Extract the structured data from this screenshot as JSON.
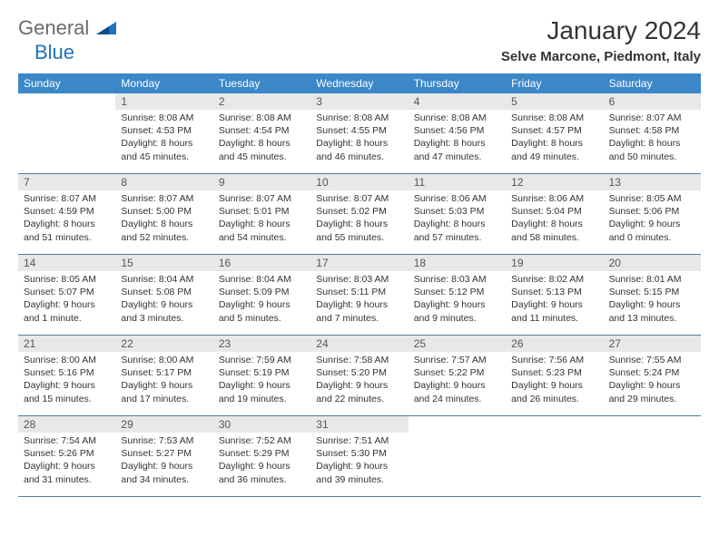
{
  "logo": {
    "text1": "General",
    "text2": "Blue"
  },
  "title": "January 2024",
  "location": "Selve Marcone, Piedmont, Italy",
  "colors": {
    "header_bg": "#3b87c8",
    "header_text": "#ffffff",
    "daynum_bg": "#e8e8e8",
    "daynum_text": "#555555",
    "border": "#5a7a94",
    "logo_gray": "#6b6b6b",
    "logo_blue": "#1f71b8",
    "body_text": "#333333"
  },
  "weekdays": [
    "Sunday",
    "Monday",
    "Tuesday",
    "Wednesday",
    "Thursday",
    "Friday",
    "Saturday"
  ],
  "weeks": [
    [
      {
        "n": "",
        "sr": "",
        "ss": "",
        "dl": ""
      },
      {
        "n": "1",
        "sr": "Sunrise: 8:08 AM",
        "ss": "Sunset: 4:53 PM",
        "dl": "Daylight: 8 hours and 45 minutes."
      },
      {
        "n": "2",
        "sr": "Sunrise: 8:08 AM",
        "ss": "Sunset: 4:54 PM",
        "dl": "Daylight: 8 hours and 45 minutes."
      },
      {
        "n": "3",
        "sr": "Sunrise: 8:08 AM",
        "ss": "Sunset: 4:55 PM",
        "dl": "Daylight: 8 hours and 46 minutes."
      },
      {
        "n": "4",
        "sr": "Sunrise: 8:08 AM",
        "ss": "Sunset: 4:56 PM",
        "dl": "Daylight: 8 hours and 47 minutes."
      },
      {
        "n": "5",
        "sr": "Sunrise: 8:08 AM",
        "ss": "Sunset: 4:57 PM",
        "dl": "Daylight: 8 hours and 49 minutes."
      },
      {
        "n": "6",
        "sr": "Sunrise: 8:07 AM",
        "ss": "Sunset: 4:58 PM",
        "dl": "Daylight: 8 hours and 50 minutes."
      }
    ],
    [
      {
        "n": "7",
        "sr": "Sunrise: 8:07 AM",
        "ss": "Sunset: 4:59 PM",
        "dl": "Daylight: 8 hours and 51 minutes."
      },
      {
        "n": "8",
        "sr": "Sunrise: 8:07 AM",
        "ss": "Sunset: 5:00 PM",
        "dl": "Daylight: 8 hours and 52 minutes."
      },
      {
        "n": "9",
        "sr": "Sunrise: 8:07 AM",
        "ss": "Sunset: 5:01 PM",
        "dl": "Daylight: 8 hours and 54 minutes."
      },
      {
        "n": "10",
        "sr": "Sunrise: 8:07 AM",
        "ss": "Sunset: 5:02 PM",
        "dl": "Daylight: 8 hours and 55 minutes."
      },
      {
        "n": "11",
        "sr": "Sunrise: 8:06 AM",
        "ss": "Sunset: 5:03 PM",
        "dl": "Daylight: 8 hours and 57 minutes."
      },
      {
        "n": "12",
        "sr": "Sunrise: 8:06 AM",
        "ss": "Sunset: 5:04 PM",
        "dl": "Daylight: 8 hours and 58 minutes."
      },
      {
        "n": "13",
        "sr": "Sunrise: 8:05 AM",
        "ss": "Sunset: 5:06 PM",
        "dl": "Daylight: 9 hours and 0 minutes."
      }
    ],
    [
      {
        "n": "14",
        "sr": "Sunrise: 8:05 AM",
        "ss": "Sunset: 5:07 PM",
        "dl": "Daylight: 9 hours and 1 minute."
      },
      {
        "n": "15",
        "sr": "Sunrise: 8:04 AM",
        "ss": "Sunset: 5:08 PM",
        "dl": "Daylight: 9 hours and 3 minutes."
      },
      {
        "n": "16",
        "sr": "Sunrise: 8:04 AM",
        "ss": "Sunset: 5:09 PM",
        "dl": "Daylight: 9 hours and 5 minutes."
      },
      {
        "n": "17",
        "sr": "Sunrise: 8:03 AM",
        "ss": "Sunset: 5:11 PM",
        "dl": "Daylight: 9 hours and 7 minutes."
      },
      {
        "n": "18",
        "sr": "Sunrise: 8:03 AM",
        "ss": "Sunset: 5:12 PM",
        "dl": "Daylight: 9 hours and 9 minutes."
      },
      {
        "n": "19",
        "sr": "Sunrise: 8:02 AM",
        "ss": "Sunset: 5:13 PM",
        "dl": "Daylight: 9 hours and 11 minutes."
      },
      {
        "n": "20",
        "sr": "Sunrise: 8:01 AM",
        "ss": "Sunset: 5:15 PM",
        "dl": "Daylight: 9 hours and 13 minutes."
      }
    ],
    [
      {
        "n": "21",
        "sr": "Sunrise: 8:00 AM",
        "ss": "Sunset: 5:16 PM",
        "dl": "Daylight: 9 hours and 15 minutes."
      },
      {
        "n": "22",
        "sr": "Sunrise: 8:00 AM",
        "ss": "Sunset: 5:17 PM",
        "dl": "Daylight: 9 hours and 17 minutes."
      },
      {
        "n": "23",
        "sr": "Sunrise: 7:59 AM",
        "ss": "Sunset: 5:19 PM",
        "dl": "Daylight: 9 hours and 19 minutes."
      },
      {
        "n": "24",
        "sr": "Sunrise: 7:58 AM",
        "ss": "Sunset: 5:20 PM",
        "dl": "Daylight: 9 hours and 22 minutes."
      },
      {
        "n": "25",
        "sr": "Sunrise: 7:57 AM",
        "ss": "Sunset: 5:22 PM",
        "dl": "Daylight: 9 hours and 24 minutes."
      },
      {
        "n": "26",
        "sr": "Sunrise: 7:56 AM",
        "ss": "Sunset: 5:23 PM",
        "dl": "Daylight: 9 hours and 26 minutes."
      },
      {
        "n": "27",
        "sr": "Sunrise: 7:55 AM",
        "ss": "Sunset: 5:24 PM",
        "dl": "Daylight: 9 hours and 29 minutes."
      }
    ],
    [
      {
        "n": "28",
        "sr": "Sunrise: 7:54 AM",
        "ss": "Sunset: 5:26 PM",
        "dl": "Daylight: 9 hours and 31 minutes."
      },
      {
        "n": "29",
        "sr": "Sunrise: 7:53 AM",
        "ss": "Sunset: 5:27 PM",
        "dl": "Daylight: 9 hours and 34 minutes."
      },
      {
        "n": "30",
        "sr": "Sunrise: 7:52 AM",
        "ss": "Sunset: 5:29 PM",
        "dl": "Daylight: 9 hours and 36 minutes."
      },
      {
        "n": "31",
        "sr": "Sunrise: 7:51 AM",
        "ss": "Sunset: 5:30 PM",
        "dl": "Daylight: 9 hours and 39 minutes."
      },
      {
        "n": "",
        "sr": "",
        "ss": "",
        "dl": ""
      },
      {
        "n": "",
        "sr": "",
        "ss": "",
        "dl": ""
      },
      {
        "n": "",
        "sr": "",
        "ss": "",
        "dl": ""
      }
    ]
  ]
}
